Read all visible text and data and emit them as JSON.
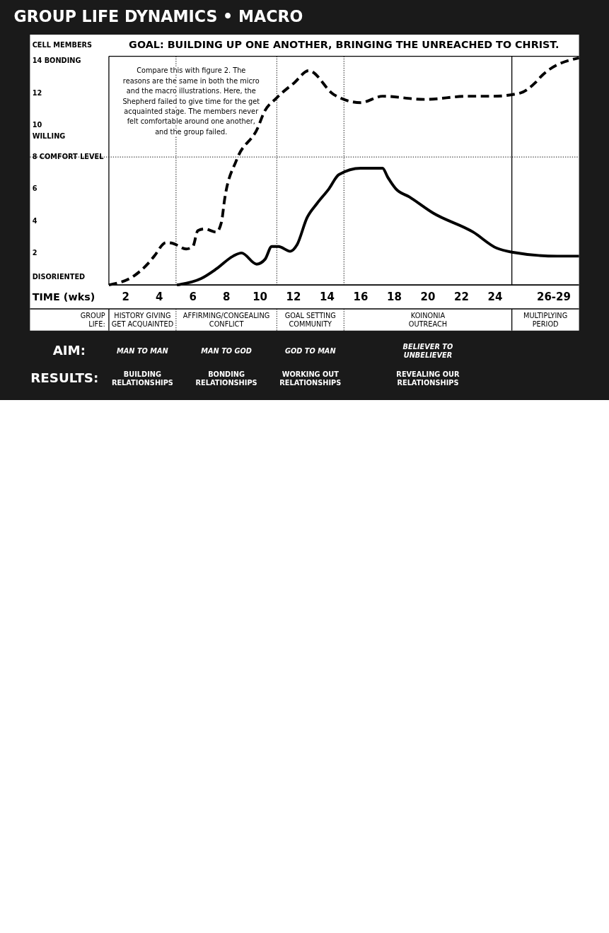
{
  "chart_data": {
    "type": "line",
    "title": "GROUP LIFE DYNAMICS • MACRO",
    "subtitle": "GOAL: BUILDING UP ONE ANOTHER, BRINGING THE UNREACHED TO CHRIST.",
    "xlabel": "TIME (wks)",
    "ylabel": "CELL MEMBERS",
    "xlim": [
      1,
      29
    ],
    "xticks": [
      2,
      4,
      6,
      8,
      10,
      12,
      14,
      16,
      18,
      20,
      22,
      24,
      {
        "value": 27.5,
        "label": "26-29"
      }
    ],
    "ylim": [
      0,
      14.3
    ],
    "yticks": [
      {
        "value": 14,
        "label": "14 BONDING"
      },
      12,
      10,
      {
        "value": 9.3,
        "label": "WILLING"
      },
      {
        "value": 8,
        "label": "8 COMFORT LEVEL"
      },
      6,
      4,
      2,
      {
        "value": 0.5,
        "label": "DISORIENTED"
      }
    ],
    "series": [
      {
        "color": "#000000",
        "line_style": "dashed",
        "x": [
          1,
          2.54,
          3.3,
          3.7,
          4.4,
          4.8,
          5.6,
          6.0,
          6.3,
          6.7,
          7.4,
          7.7,
          7.9,
          8.6,
          9.9,
          10.2,
          11.0,
          12.05,
          12.9,
          14.4,
          16.0,
          17.3,
          19.8,
          22.4,
          23.9,
          25.5,
          26.4,
          26.8,
          29
        ],
        "values": [
          0,
          0.6,
          1.3,
          1.8,
          2.65,
          2.6,
          2.25,
          2.4,
          3.4,
          3.5,
          3.3,
          3.9,
          5.4,
          7.8,
          9.9,
          10.7,
          11.7,
          12.65,
          13.4,
          11.9,
          11.4,
          11.8,
          11.6,
          11.8,
          11.8,
          12.0,
          12.65,
          13.1,
          14.2
        ]
      },
      {
        "color": "#000000",
        "line_style": "solid",
        "x": [
          5.05,
          6.5,
          7.4,
          8.4,
          8.9,
          9.8,
          10.3,
          10.7,
          11.1,
          11.8,
          12.2,
          12.8,
          13.4,
          14.1,
          14.7,
          16.0,
          17.3,
          17.6,
          18.1,
          18.9,
          20.3,
          22.7,
          24.1,
          25,
          27.7,
          29
        ],
        "values": [
          0,
          0.4,
          1.0,
          1.8,
          2.0,
          1.3,
          1.6,
          2.4,
          2.4,
          2.1,
          2.5,
          4.2,
          5.1,
          6.0,
          6.9,
          7.3,
          7.3,
          6.75,
          6.0,
          5.5,
          4.5,
          3.3,
          2.3,
          2.05,
          1.8,
          1.8
        ]
      }
    ],
    "ref_lines": [
      {
        "axis": "x",
        "value": 5,
        "line_style": "dotted"
      },
      {
        "axis": "x",
        "value": 11,
        "line_style": "dotted"
      },
      {
        "axis": "x",
        "value": 15,
        "line_style": "dotted"
      },
      {
        "axis": "x",
        "value": 25,
        "line_style": "solid"
      },
      {
        "axis": "y",
        "value": 8,
        "line_style": "dotted"
      }
    ],
    "annotations": [
      "Compare this with figure 2. The\nreasons are the same in both the micro\nand the macro illustrations. Here, the\nShepherd failed to give time for the get\nacquainted stage. The members never\nfelt comfortable around one another,\nand the group failed.",
      "GROUP\nLIFE:",
      "HISTORY GIVING\nGET ACQUAINTED",
      "AFFIRMING/CONGEALING\nCONFLICT",
      "GOAL SETTING\nCOMMUNITY",
      "KOINONIA\nOUTREACH",
      "MULTIPLYING\nPERIOD",
      "AIM:",
      "MAN TO MAN",
      "MAN TO GOD",
      "GOD TO MAN",
      "BELIEVER TO\nUNBELIEVER",
      "RESULTS:",
      "BUILDING\nRELATIONSHIPS",
      "BONDING\nRELATIONSHIPS",
      "WORKING OUT\nRELATIONSHIPS",
      "REVEALING OUR\nRELATIONSHIPS"
    ]
  }
}
